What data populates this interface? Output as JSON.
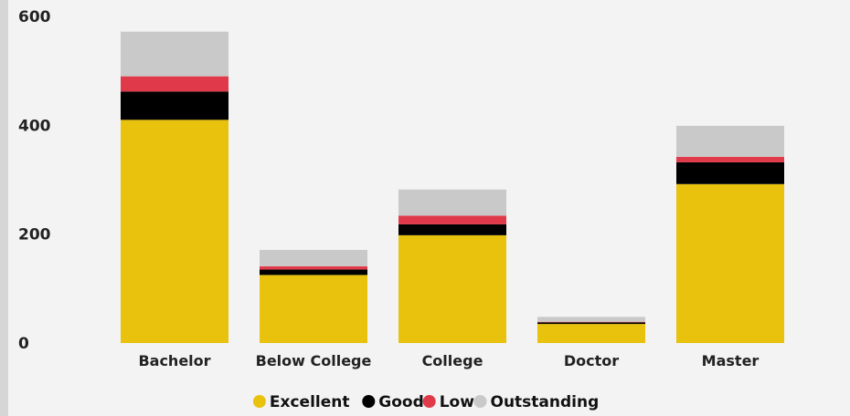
{
  "chart_data": {
    "type": "bar",
    "stacked": true,
    "categories": [
      "Bachelor",
      "Below College",
      "College",
      "Doctor",
      "Master"
    ],
    "series": [
      {
        "name": "Excellent",
        "color": "#E8C20C",
        "values": [
          410,
          125,
          198,
          35,
          292
        ]
      },
      {
        "name": "Good",
        "color": "#000000",
        "values": [
          52,
          10,
          20,
          3,
          40
        ]
      },
      {
        "name": "Low",
        "color": "#E03A4A",
        "values": [
          28,
          6,
          16,
          1,
          10
        ]
      },
      {
        "name": "Outstanding",
        "color": "#C9C9C9",
        "values": [
          82,
          30,
          48,
          9,
          57
        ]
      }
    ],
    "ylim": [
      0,
      600
    ],
    "yticks": [
      0,
      200,
      400,
      600
    ],
    "legend_position": "bottom-center",
    "grid": false
  }
}
